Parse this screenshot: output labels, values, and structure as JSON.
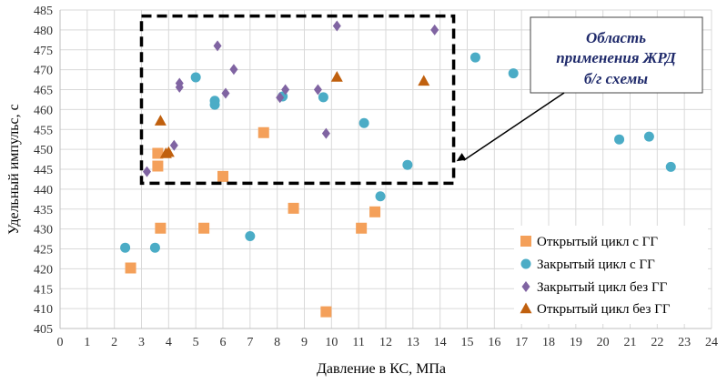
{
  "chart_data": {
    "type": "scatter",
    "xlabel": "Давление в КС, МПа",
    "ylabel": "Удельный импульс, с",
    "xlim": [
      0,
      24
    ],
    "ylim": [
      405,
      485
    ],
    "xticks": [
      0,
      1,
      2,
      3,
      4,
      5,
      6,
      7,
      8,
      9,
      10,
      11,
      12,
      13,
      14,
      15,
      16,
      17,
      18,
      19,
      20,
      21,
      22,
      23,
      24
    ],
    "yticks": [
      405,
      410,
      415,
      420,
      425,
      430,
      435,
      440,
      445,
      450,
      455,
      460,
      465,
      470,
      475,
      480,
      485
    ],
    "grid": true,
    "legend_position": "bottom-right",
    "region": {
      "x": [
        3.0,
        14.5
      ],
      "y": [
        441.5,
        483.5
      ],
      "label_lines": [
        "Область",
        "применения ЖРД",
        "б/г схемы"
      ]
    },
    "series": [
      {
        "name": "Открытый цикл с ГГ",
        "marker": "square",
        "color": "#f4a05a",
        "points": [
          [
            2.6,
            420.2
          ],
          [
            3.6,
            449
          ],
          [
            3.6,
            445.8
          ],
          [
            3.7,
            430.2
          ],
          [
            5.3,
            430.2
          ],
          [
            6.0,
            443.2
          ],
          [
            7.5,
            454.2
          ],
          [
            8.6,
            435.2
          ],
          [
            9.8,
            409.2
          ],
          [
            11.1,
            430.2
          ],
          [
            11.6,
            434.3
          ]
        ]
      },
      {
        "name": "Закрытый цикл с ГГ",
        "marker": "circle",
        "color": "#4bacc6",
        "points": [
          [
            2.4,
            425.3
          ],
          [
            3.5,
            425.3
          ],
          [
            5.0,
            468.1
          ],
          [
            5.7,
            462.2
          ],
          [
            5.7,
            461.2
          ],
          [
            7.0,
            428.2
          ],
          [
            8.2,
            463.3
          ],
          [
            9.7,
            463.1
          ],
          [
            11.2,
            456.6
          ],
          [
            11.8,
            438.2
          ],
          [
            12.8,
            446.1
          ],
          [
            15.3,
            473.1
          ],
          [
            16.7,
            469.1
          ],
          [
            20.6,
            452.5
          ],
          [
            21.7,
            453.2
          ],
          [
            22.5,
            445.6
          ]
        ]
      },
      {
        "name": "Закрытый цикл без ГГ",
        "marker": "diamond",
        "color": "#8064a2",
        "points": [
          [
            3.2,
            444.4
          ],
          [
            4.2,
            451
          ],
          [
            4.4,
            465.6
          ],
          [
            4.4,
            466.6
          ],
          [
            5.8,
            476
          ],
          [
            6.1,
            464.1
          ],
          [
            6.4,
            470.1
          ],
          [
            8.1,
            463
          ],
          [
            8.3,
            465
          ],
          [
            9.5,
            465
          ],
          [
            9.8,
            454
          ],
          [
            10.2,
            481
          ],
          [
            13.8,
            480
          ]
        ]
      },
      {
        "name": "Открытый цикл без ГГ",
        "marker": "triangle",
        "color": "#c0600e",
        "points": [
          [
            3.7,
            457.2
          ],
          [
            3.9,
            449
          ],
          [
            4.0,
            449.3
          ],
          [
            10.2,
            468.2
          ],
          [
            13.4,
            467.2
          ]
        ]
      }
    ]
  }
}
